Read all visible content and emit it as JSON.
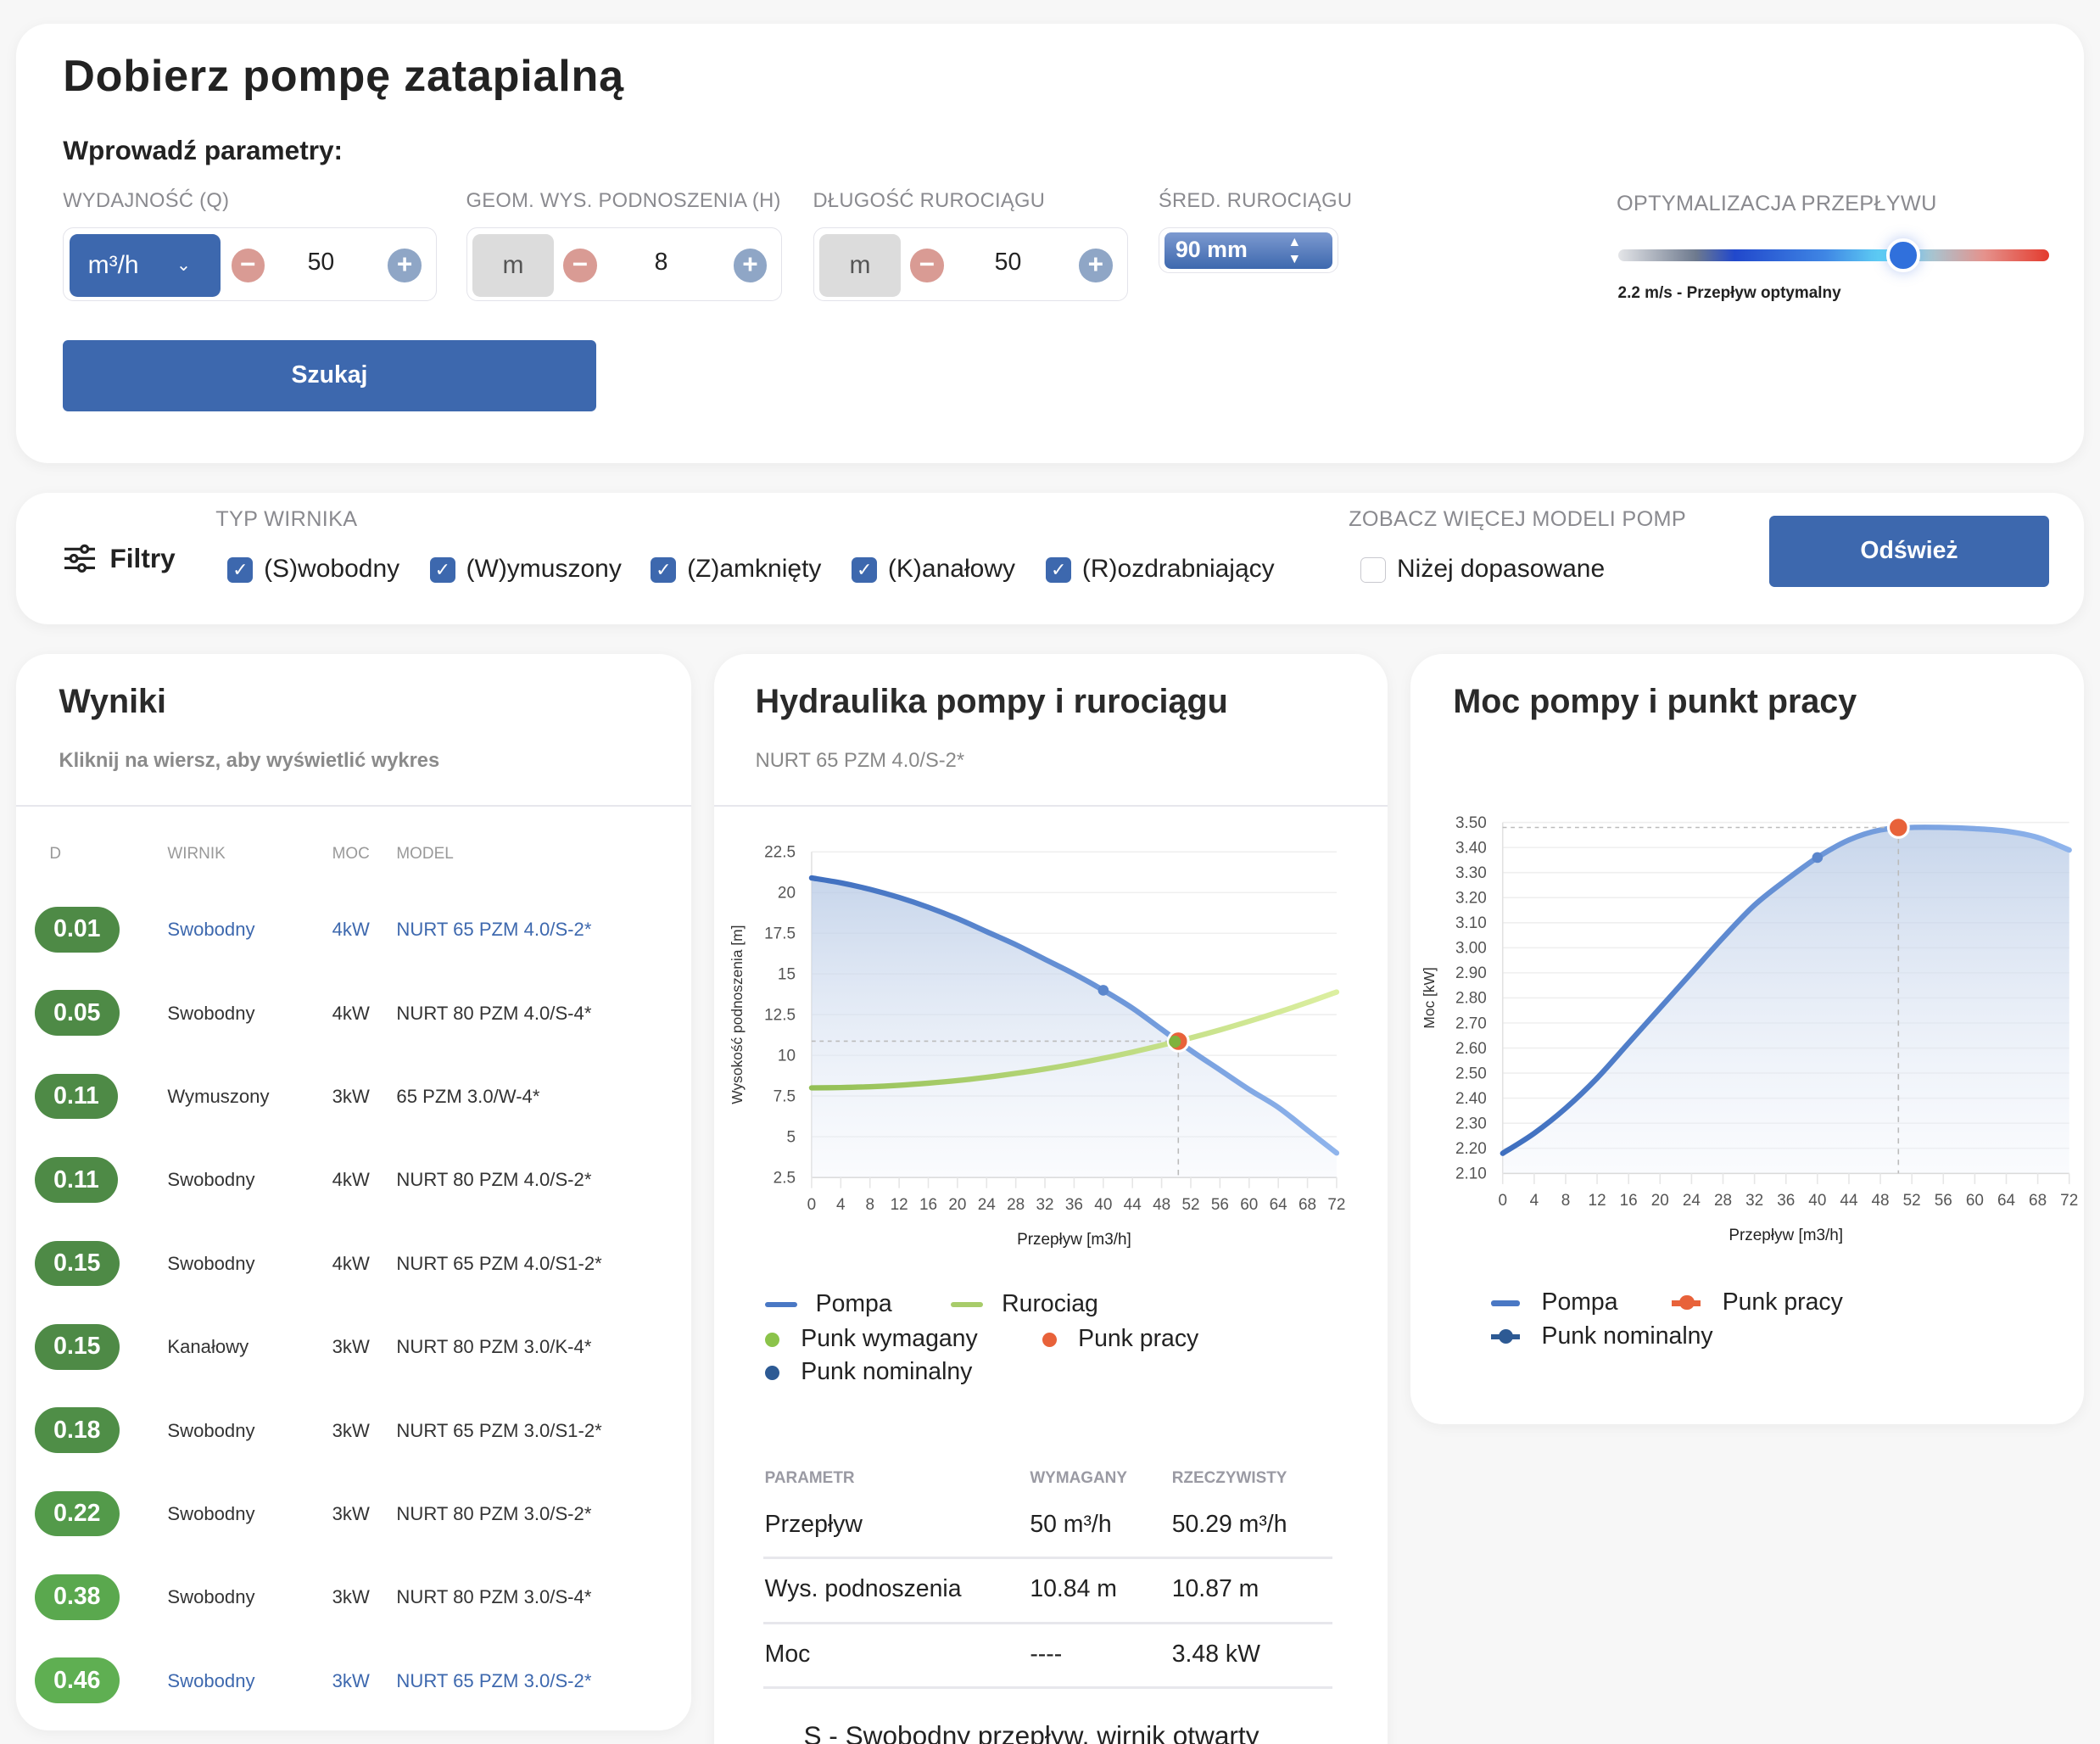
{
  "header": {
    "title": "Dobierz pompę zatapialną",
    "subtitle": "Wprowadź parametry:"
  },
  "inputs": {
    "flow": {
      "label": "WYDAJNOŚĆ (Q)",
      "unit": "m³/h",
      "value": "50"
    },
    "head": {
      "label": "GEOM. WYS. PODNOSZENIA (H)",
      "unit": "m",
      "value": "8"
    },
    "length": {
      "label": "DŁUGOŚĆ RUROCIĄGU",
      "unit": "m",
      "value": "50"
    },
    "diameter": {
      "label": "ŚRED. RUROCIĄGU",
      "value": "90 mm"
    },
    "optimization": {
      "label": "OPTYMALIZACJA PRZEPŁYWU",
      "status": "2.2 m/s - Przepływ optymalny",
      "position_fraction": 0.66
    },
    "search_label": "Szukaj"
  },
  "filters": {
    "title": "Filtry",
    "type_label": "TYP WIRNIKA",
    "types": [
      {
        "label": "(S)wobodny",
        "checked": true
      },
      {
        "label": "(W)ymuszony",
        "checked": true
      },
      {
        "label": "(Z)amknięty",
        "checked": true
      },
      {
        "label": "(K)anałowy",
        "checked": true
      },
      {
        "label": "(R)ozdrabniający",
        "checked": true
      }
    ],
    "more_label": "ZOBACZ WIĘCEJ MODELI POMP",
    "lower_label": "Niżej dopasowane",
    "lower_checked": false,
    "refresh_label": "Odśwież"
  },
  "results": {
    "title": "Wyniki",
    "hint": "Kliknij na wiersz, aby wyświetlić wykres",
    "columns": [
      "D",
      "WIRNIK",
      "MOC",
      "MODEL"
    ],
    "rows": [
      {
        "d": "0.01",
        "wirnik": "Swobodny",
        "moc": "4kW",
        "model": "NURT 65 PZM 4.0/S-2*",
        "selected": true
      },
      {
        "d": "0.05",
        "wirnik": "Swobodny",
        "moc": "4kW",
        "model": "NURT 80 PZM 4.0/S-4*"
      },
      {
        "d": "0.11",
        "wirnik": "Wymuszony",
        "moc": "3kW",
        "model": "65 PZM 3.0/W-4*"
      },
      {
        "d": "0.11",
        "wirnik": "Swobodny",
        "moc": "4kW",
        "model": "NURT 80 PZM 4.0/S-2*"
      },
      {
        "d": "0.15",
        "wirnik": "Swobodny",
        "moc": "4kW",
        "model": "NURT 65 PZM 4.0/S1-2*"
      },
      {
        "d": "0.15",
        "wirnik": "Kanałowy",
        "moc": "3kW",
        "model": "NURT 80 PZM 3.0/K-4*"
      },
      {
        "d": "0.18",
        "wirnik": "Swobodny",
        "moc": "3kW",
        "model": "NURT 65 PZM 3.0/S1-2*"
      },
      {
        "d": "0.22",
        "wirnik": "Swobodny",
        "moc": "3kW",
        "model": "NURT 80 PZM 3.0/S-2*"
      },
      {
        "d": "0.38",
        "wirnik": "Swobodny",
        "moc": "3kW",
        "model": "NURT 80 PZM 3.0/S-4*"
      },
      {
        "d": "0.46",
        "wirnik": "Swobodny",
        "moc": "3kW",
        "model": "NURT 65 PZM 3.0/S-2*",
        "selected": true
      }
    ]
  },
  "hydraulics": {
    "title": "Hydraulika pompy i rurociągu",
    "model": "NURT 65 PZM 4.0/S-2*",
    "legend": {
      "pump": "Pompa",
      "pipe": "Rurociag",
      "required": "Punk wymagany",
      "work": "Punk pracy",
      "nominal": "Punk nominalny"
    },
    "params": {
      "headers": [
        "PARAMETR",
        "WYMAGANY",
        "RZECZYWISTY"
      ],
      "rows": [
        [
          "Przepływ",
          "50 m³/h",
          "50.29 m³/h"
        ],
        [
          "Wys. podnoszenia",
          "10.84 m",
          "10.87 m"
        ],
        [
          "Moc",
          "----",
          "3.48 kW"
        ]
      ]
    },
    "footnote": "S - Swobodny przepływ, wirnik otwarty"
  },
  "power": {
    "title": "Moc pompy i punkt pracy",
    "legend": {
      "pump": "Pompa",
      "work": "Punk pracy",
      "nominal": "Punk nominalny"
    }
  },
  "chart_data": [
    {
      "type": "line",
      "title": "Hydraulika pompy i rurociągu",
      "xlabel": "Przepływ [m3/h]",
      "ylabel": "Wysokość podnoszenia [m]",
      "xlim": [
        0,
        72
      ],
      "ylim": [
        2.5,
        22.5
      ],
      "xticks": [
        "0",
        "4",
        "8",
        "12",
        "16",
        "20",
        "24",
        "28",
        "32",
        "36",
        "40",
        "44",
        "48",
        "52",
        "56",
        "60",
        "64",
        "68",
        "72"
      ],
      "yticks": [
        "2.5",
        "5",
        "7.5",
        "10",
        "12.5",
        "15",
        "17.5",
        "20",
        "22.5"
      ],
      "x": [
        0,
        4,
        8,
        12,
        16,
        20,
        24,
        28,
        32,
        36,
        40,
        44,
        48,
        52,
        56,
        60,
        64,
        68,
        72
      ],
      "series": [
        {
          "name": "Pompa",
          "color": "#4a78c4",
          "values": [
            20.9,
            20.6,
            20.2,
            19.7,
            19.1,
            18.4,
            17.6,
            16.8,
            15.9,
            15.0,
            14.0,
            12.9,
            11.6,
            10.3,
            9.1,
            7.9,
            6.8,
            5.4,
            4.0
          ]
        },
        {
          "name": "Rurociag",
          "color": "#a8cc6a",
          "values": [
            8.0,
            8.02,
            8.07,
            8.16,
            8.29,
            8.45,
            8.65,
            8.89,
            9.16,
            9.47,
            9.82,
            10.2,
            10.62,
            11.07,
            11.56,
            12.09,
            12.65,
            13.25,
            13.89
          ]
        }
      ],
      "points": {
        "required": {
          "x": 50,
          "y": 10.84,
          "color": "#8bc34a"
        },
        "work": {
          "x": 50.29,
          "y": 10.87,
          "color": "#e8623a"
        },
        "nominal": {
          "x": 40,
          "y": 14.0,
          "color": "#4a78c4"
        }
      }
    },
    {
      "type": "line",
      "title": "Moc pompy i punkt pracy",
      "xlabel": "Przepływ [m3/h]",
      "ylabel": "Moc [kW]",
      "xlim": [
        0,
        72
      ],
      "ylim": [
        2.1,
        3.5
      ],
      "xticks": [
        "0",
        "4",
        "8",
        "12",
        "16",
        "20",
        "24",
        "28",
        "32",
        "36",
        "40",
        "44",
        "48",
        "52",
        "56",
        "60",
        "64",
        "68",
        "72"
      ],
      "yticks": [
        "2.10",
        "2.20",
        "2.30",
        "2.40",
        "2.50",
        "2.60",
        "2.70",
        "2.80",
        "2.90",
        "3.00",
        "3.10",
        "3.20",
        "3.30",
        "3.40",
        "3.50"
      ],
      "x": [
        0,
        4,
        8,
        12,
        16,
        20,
        24,
        28,
        32,
        36,
        40,
        44,
        48,
        52,
        56,
        60,
        64,
        68,
        72
      ],
      "series": [
        {
          "name": "Pompa",
          "color": "#4a78c4",
          "values": [
            2.18,
            2.26,
            2.36,
            2.48,
            2.62,
            2.76,
            2.9,
            3.04,
            3.17,
            3.27,
            3.36,
            3.43,
            3.47,
            3.48,
            3.48,
            3.475,
            3.465,
            3.44,
            3.39
          ]
        }
      ],
      "points": {
        "work": {
          "x": 50.29,
          "y": 3.48,
          "color": "#e8623a"
        },
        "nominal": {
          "x": 40,
          "y": 3.36,
          "color": "#4a78c4"
        }
      }
    }
  ]
}
